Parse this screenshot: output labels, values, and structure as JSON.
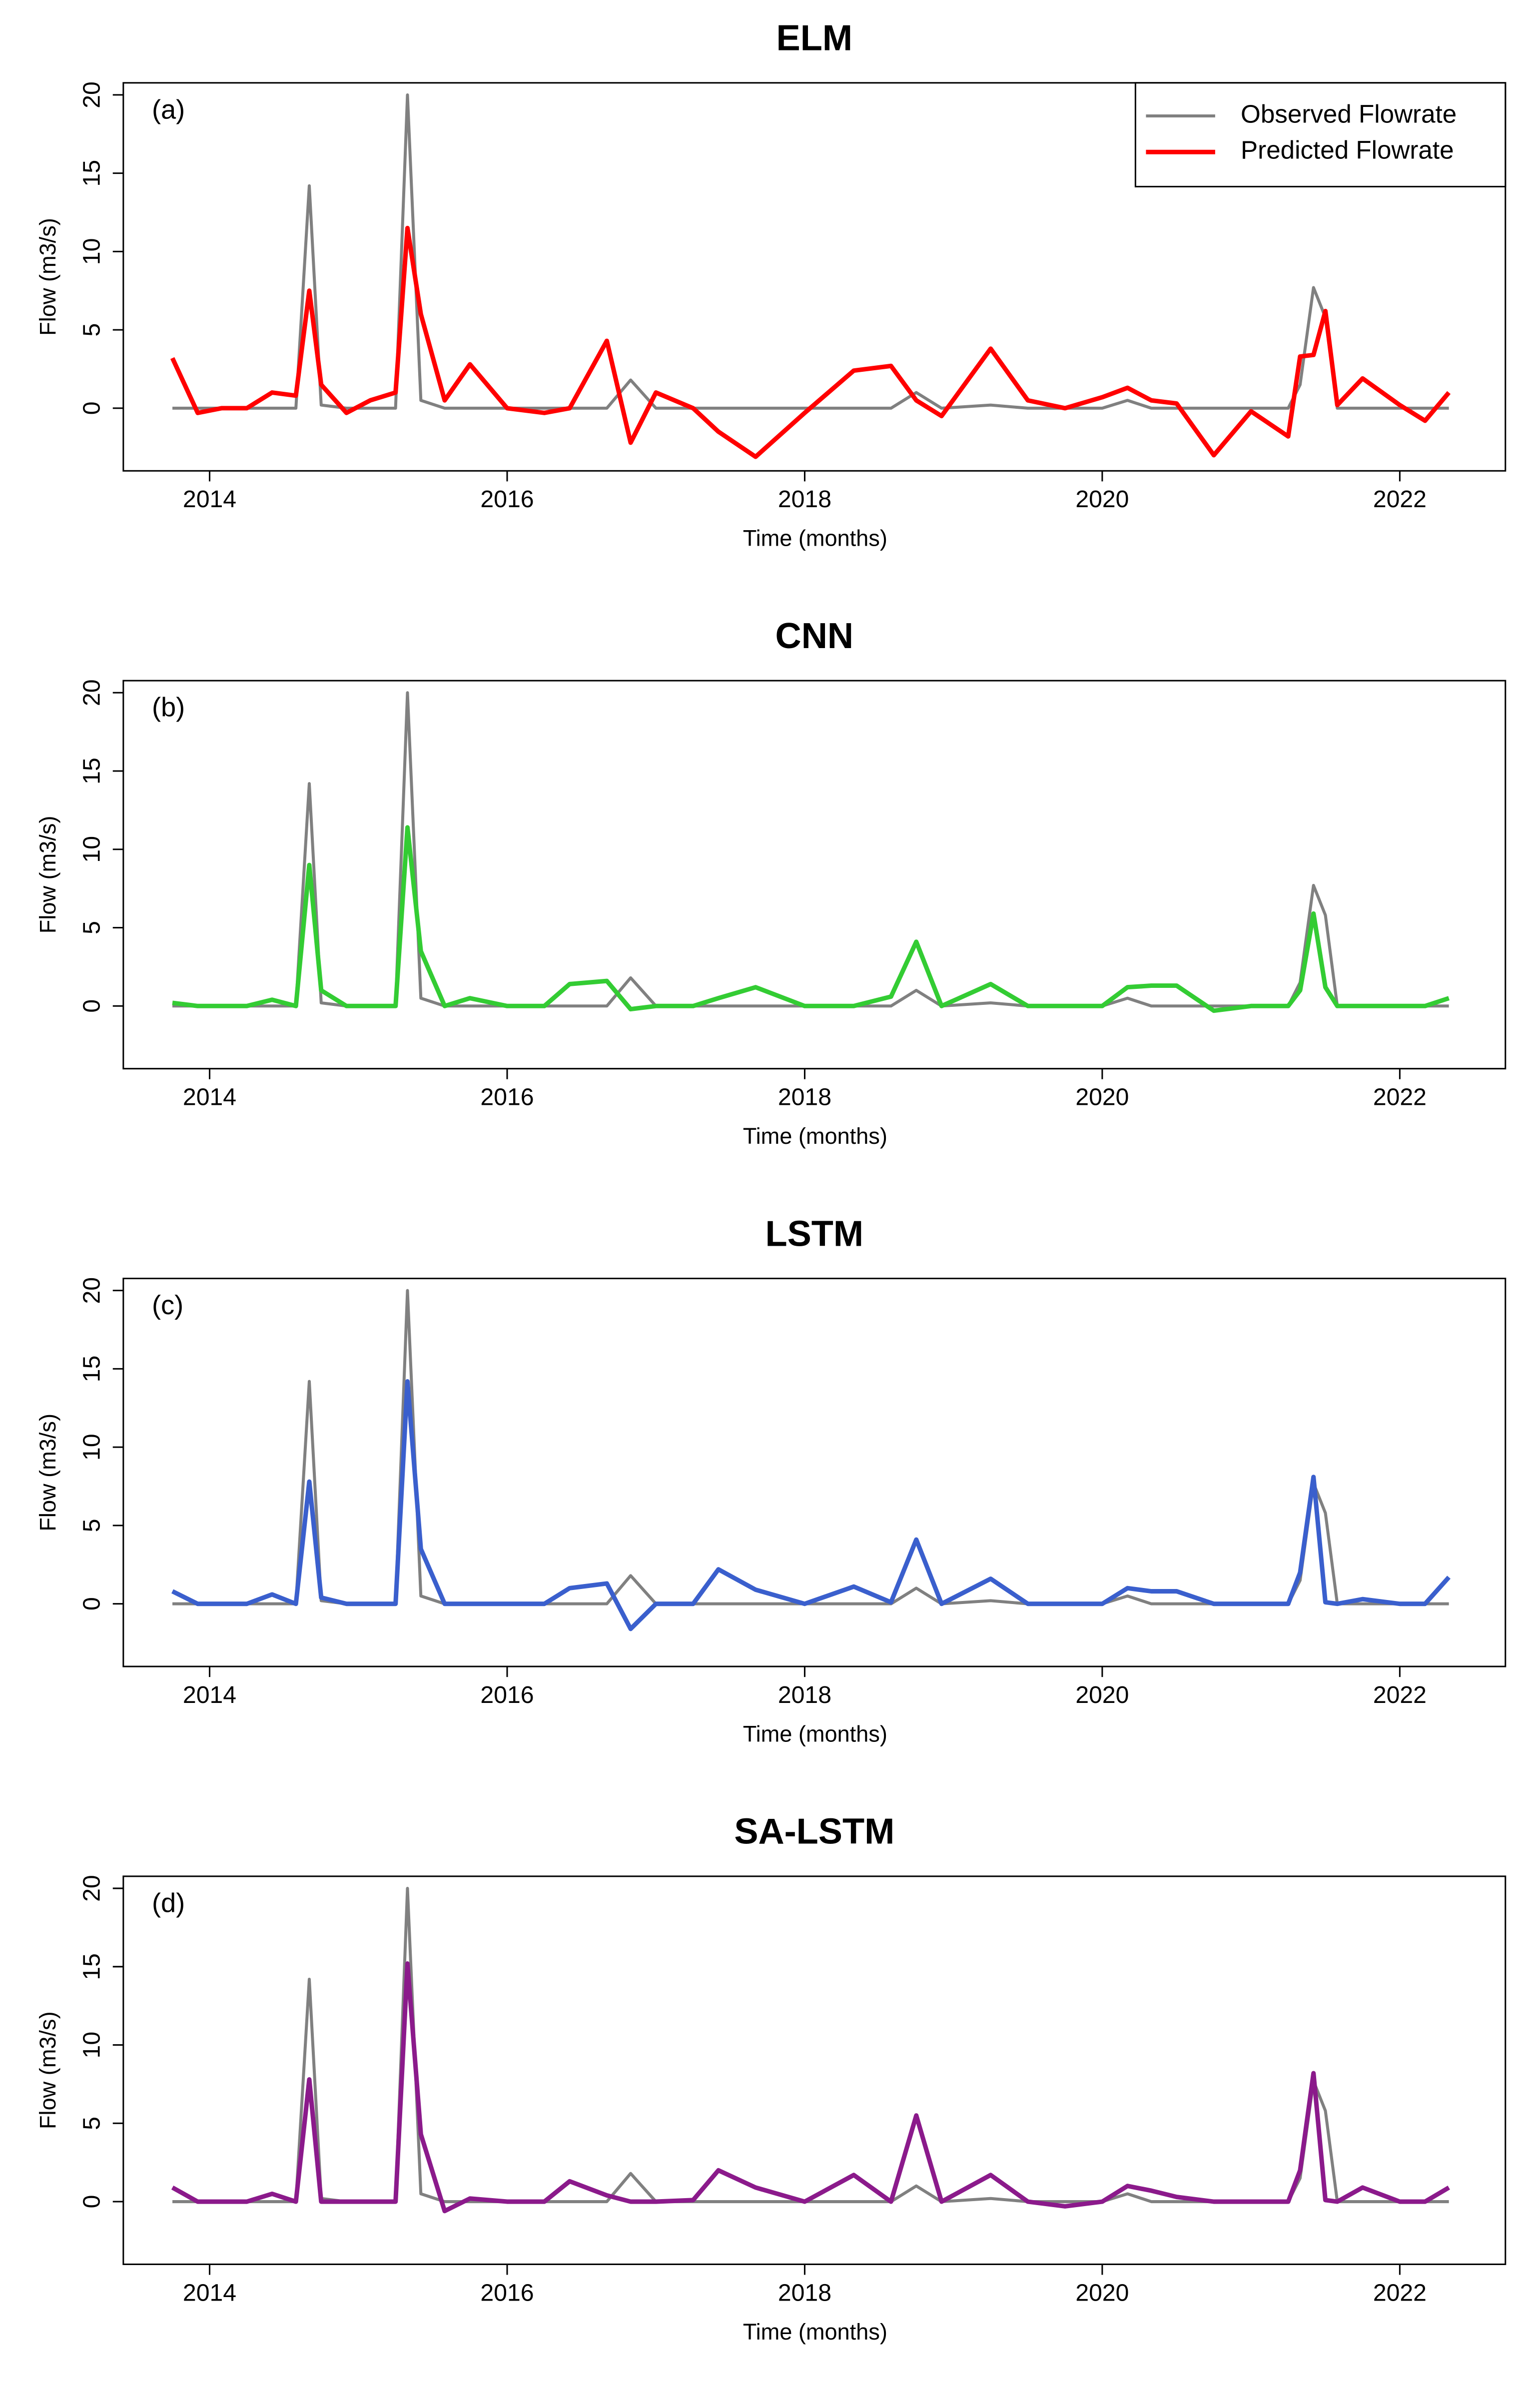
{
  "chart_data": [
    {
      "type": "line",
      "title": "ELM",
      "panel_label": "(a)",
      "xlabel": "Time (months)",
      "ylabel": "Flow (m3/s)",
      "x": [
        2013.75,
        2013.92,
        2014.08,
        2014.25,
        2014.42,
        2014.58,
        2014.67,
        2014.75,
        2014.92,
        2015.08,
        2015.25,
        2015.33,
        2015.42,
        2015.58,
        2015.75,
        2016.0,
        2016.25,
        2016.42,
        2016.67,
        2016.83,
        2017.0,
        2017.25,
        2017.42,
        2017.67,
        2018.0,
        2018.33,
        2018.58,
        2018.75,
        2018.92,
        2019.25,
        2019.5,
        2019.75,
        2020.0,
        2020.17,
        2020.33,
        2020.5,
        2020.75,
        2021.0,
        2021.25,
        2021.33,
        2021.42,
        2021.5,
        2021.58,
        2021.75,
        2022.0,
        2022.17,
        2022.33
      ],
      "series": [
        {
          "name": "Observed Flowrate",
          "color": "#808080",
          "values": [
            0,
            0,
            0,
            0,
            0,
            0,
            14.2,
            0.2,
            0,
            0,
            0,
            20,
            0.5,
            0,
            0,
            0,
            0,
            0,
            0,
            1.8,
            0,
            0,
            0,
            0,
            0,
            0,
            0,
            1,
            0,
            0.2,
            0,
            0,
            0,
            0.5,
            0,
            0,
            0,
            0,
            0,
            1.5,
            7.7,
            5.8,
            0,
            0,
            0,
            0,
            0
          ]
        },
        {
          "name": "Predicted Flowrate",
          "color": "#ff0000",
          "values": [
            3.2,
            -0.3,
            0,
            0,
            1,
            0.8,
            7.5,
            1.5,
            -0.3,
            0.5,
            1,
            11.5,
            6,
            0.5,
            2.8,
            0,
            -0.3,
            0,
            4.3,
            -2.2,
            1,
            0,
            -1.5,
            -3.1,
            -0.3,
            2.4,
            2.7,
            0.5,
            -0.5,
            3.8,
            0.5,
            0,
            0.7,
            1.3,
            0.5,
            0.3,
            -3,
            -0.2,
            -1.8,
            3.3,
            3.4,
            6.2,
            0.2,
            1.9,
            0.2,
            -0.8,
            1.0
          ]
        }
      ],
      "xlim": [
        2013.42,
        2022.71
      ],
      "ylim": [
        -4,
        20.77
      ],
      "xticks": [
        2014,
        2016,
        2018,
        2020,
        2022
      ],
      "yticks": [
        0,
        5,
        10,
        15,
        20
      ],
      "legend": "top-right"
    },
    {
      "type": "line",
      "title": "CNN",
      "panel_label": "(b)",
      "xlabel": "Time (months)",
      "ylabel": "Flow (m3/s)",
      "x": [
        2013.75,
        2013.92,
        2014.08,
        2014.25,
        2014.42,
        2014.58,
        2014.67,
        2014.75,
        2014.92,
        2015.08,
        2015.25,
        2015.33,
        2015.42,
        2015.58,
        2015.75,
        2016.0,
        2016.25,
        2016.42,
        2016.67,
        2016.83,
        2017.0,
        2017.25,
        2017.42,
        2017.67,
        2018.0,
        2018.33,
        2018.58,
        2018.75,
        2018.92,
        2019.25,
        2019.5,
        2019.75,
        2020.0,
        2020.17,
        2020.33,
        2020.5,
        2020.75,
        2021.0,
        2021.25,
        2021.33,
        2021.42,
        2021.5,
        2021.58,
        2021.75,
        2022.0,
        2022.17,
        2022.33
      ],
      "series": [
        {
          "name": "Observed Flowrate",
          "color": "#808080",
          "values": [
            0,
            0,
            0,
            0,
            0,
            0,
            14.2,
            0.2,
            0,
            0,
            0,
            20,
            0.5,
            0,
            0,
            0,
            0,
            0,
            0,
            1.8,
            0,
            0,
            0,
            0,
            0,
            0,
            0,
            1,
            0,
            0.2,
            0,
            0,
            0,
            0.5,
            0,
            0,
            0,
            0,
            0,
            1.5,
            7.7,
            5.8,
            0,
            0,
            0,
            0,
            0
          ]
        },
        {
          "name": "Predicted Flowrate",
          "color": "#33cc33",
          "values": [
            0.2,
            0,
            0,
            0,
            0.4,
            0,
            9,
            1,
            0,
            0,
            0,
            11.4,
            3.5,
            0,
            0.5,
            0,
            0,
            1.4,
            1.6,
            -0.2,
            0,
            0,
            0.5,
            1.2,
            0,
            0,
            0.6,
            4.1,
            0,
            1.4,
            0,
            0,
            0,
            1.2,
            1.3,
            1.3,
            -0.3,
            0,
            0,
            1,
            5.9,
            1.2,
            0,
            0,
            0,
            0,
            0.5
          ]
        }
      ],
      "xlim": [
        2013.42,
        2022.71
      ],
      "ylim": [
        -4,
        20.77
      ],
      "xticks": [
        2014,
        2016,
        2018,
        2020,
        2022
      ],
      "yticks": [
        0,
        5,
        10,
        15,
        20
      ],
      "legend": false
    },
    {
      "type": "line",
      "title": "LSTM",
      "panel_label": "(c)",
      "xlabel": "Time (months)",
      "ylabel": "Flow (m3/s)",
      "x": [
        2013.75,
        2013.92,
        2014.08,
        2014.25,
        2014.42,
        2014.58,
        2014.67,
        2014.75,
        2014.92,
        2015.08,
        2015.25,
        2015.33,
        2015.42,
        2015.58,
        2015.75,
        2016.0,
        2016.25,
        2016.42,
        2016.67,
        2016.83,
        2017.0,
        2017.25,
        2017.42,
        2017.67,
        2018.0,
        2018.33,
        2018.58,
        2018.75,
        2018.92,
        2019.25,
        2019.5,
        2019.75,
        2020.0,
        2020.17,
        2020.33,
        2020.5,
        2020.75,
        2021.0,
        2021.25,
        2021.33,
        2021.42,
        2021.5,
        2021.58,
        2021.75,
        2022.0,
        2022.17,
        2022.33
      ],
      "series": [
        {
          "name": "Observed Flowrate",
          "color": "#808080",
          "values": [
            0,
            0,
            0,
            0,
            0,
            0,
            14.2,
            0.2,
            0,
            0,
            0,
            20,
            0.5,
            0,
            0,
            0,
            0,
            0,
            0,
            1.8,
            0,
            0,
            0,
            0,
            0,
            0,
            0,
            1,
            0,
            0.2,
            0,
            0,
            0,
            0.5,
            0,
            0,
            0,
            0,
            0,
            1.5,
            7.7,
            5.8,
            0,
            0,
            0,
            0,
            0
          ]
        },
        {
          "name": "Predicted Flowrate",
          "color": "#3a5fcd",
          "values": [
            0.8,
            0,
            0,
            0,
            0.6,
            0,
            7.8,
            0.4,
            0,
            0,
            0,
            14.2,
            3.5,
            0,
            0,
            0,
            0,
            1,
            1.3,
            -1.6,
            0,
            0,
            2.2,
            0.9,
            0,
            1.1,
            0.1,
            4.1,
            0,
            1.6,
            0,
            0,
            0,
            1,
            0.8,
            0.8,
            0,
            0,
            0,
            2,
            8.1,
            0.1,
            0,
            0.3,
            0,
            0,
            1.7
          ]
        }
      ],
      "xlim": [
        2013.42,
        2022.71
      ],
      "ylim": [
        -4,
        20.77
      ],
      "xticks": [
        2014,
        2016,
        2018,
        2020,
        2022
      ],
      "yticks": [
        0,
        5,
        10,
        15,
        20
      ],
      "legend": false
    },
    {
      "type": "line",
      "title": "SA-LSTM",
      "panel_label": "(d)",
      "xlabel": "Time (months)",
      "ylabel": "Flow (m3/s)",
      "x": [
        2013.75,
        2013.92,
        2014.08,
        2014.25,
        2014.42,
        2014.58,
        2014.67,
        2014.75,
        2014.92,
        2015.08,
        2015.25,
        2015.33,
        2015.42,
        2015.58,
        2015.75,
        2016.0,
        2016.25,
        2016.42,
        2016.67,
        2016.83,
        2017.0,
        2017.25,
        2017.42,
        2017.67,
        2018.0,
        2018.33,
        2018.58,
        2018.75,
        2018.92,
        2019.25,
        2019.5,
        2019.75,
        2020.0,
        2020.17,
        2020.33,
        2020.5,
        2020.75,
        2021.0,
        2021.25,
        2021.33,
        2021.42,
        2021.5,
        2021.58,
        2021.75,
        2022.0,
        2022.17,
        2022.33
      ],
      "series": [
        {
          "name": "Observed Flowrate",
          "color": "#808080",
          "values": [
            0,
            0,
            0,
            0,
            0,
            0,
            14.2,
            0.2,
            0,
            0,
            0,
            20,
            0.5,
            0,
            0,
            0,
            0,
            0,
            0,
            1.8,
            0,
            0,
            0,
            0,
            0,
            0,
            0,
            1,
            0,
            0.2,
            0,
            0,
            0,
            0.5,
            0,
            0,
            0,
            0,
            0,
            1.5,
            7.7,
            5.8,
            0,
            0,
            0,
            0,
            0
          ]
        },
        {
          "name": "Predicted Flowrate",
          "color": "#8b1a8b",
          "values": [
            0.9,
            0,
            0,
            0,
            0.5,
            0,
            7.8,
            0,
            0,
            0,
            0,
            15.2,
            4.3,
            -0.6,
            0.2,
            0,
            0,
            1.3,
            0.4,
            0,
            0,
            0.1,
            2,
            0.9,
            0,
            1.7,
            0,
            5.5,
            0,
            1.7,
            0,
            -0.3,
            0,
            1,
            0.7,
            0.3,
            0,
            0,
            0,
            2,
            8.2,
            0.1,
            0,
            0.9,
            0,
            0,
            0.9
          ]
        }
      ],
      "xlim": [
        2013.42,
        2022.71
      ],
      "ylim": [
        -4,
        20.77
      ],
      "xticks": [
        2014,
        2016,
        2018,
        2020,
        2022
      ],
      "yticks": [
        0,
        5,
        10,
        15,
        20
      ],
      "legend": false
    }
  ]
}
